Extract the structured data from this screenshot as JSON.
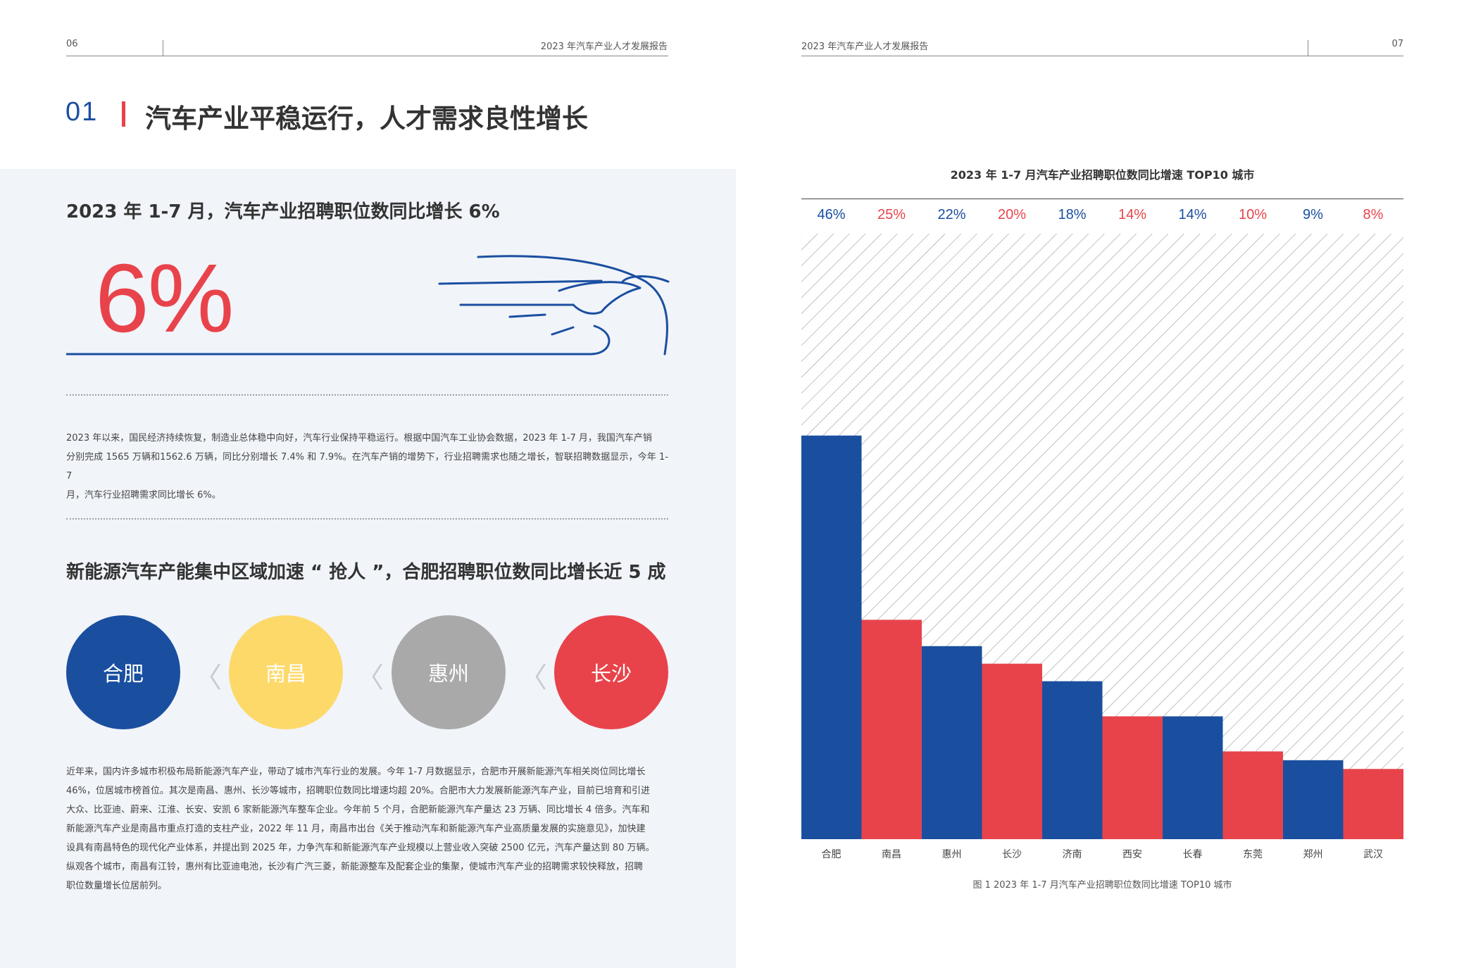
{
  "left_page": {
    "page_number": "06",
    "header_title": "2023 年汽车产业人才发展报告",
    "section_number": "01",
    "section_title": "汽车产业平稳运行，人才需求良性增长",
    "subtitle1": "2023 年 1-7 月，汽车产业招聘职位数同比增长 6%",
    "big_number": "6%",
    "paragraph1_lines": [
      "2023 年以来，国民经济持续恢复，制造业总体稳中向好，汽车行业保持平稳运行。根据中国汽车工业协会数据，2023 年 1-7 月，我国汽车产销",
      "分别完成 1565 万辆和1562.6 万辆，同比分别增长 7.4% 和 7.9%。在汽车产销的增势下，行业招聘需求也随之增长，智联招聘数据显示，今年 1-7",
      "月，汽车行业招聘需求同比增长 6%。"
    ],
    "subtitle2": "新能源汽车产能集中区域加速 “ 抢人 ”，合肥招聘职位数同比增长近 5 成",
    "cities": [
      {
        "name": "合肥",
        "color": "#1a4fa0"
      },
      {
        "name": "南昌",
        "color": "#fdd96a"
      },
      {
        "name": "惠州",
        "color": "#a9a9a9"
      },
      {
        "name": "长沙",
        "color": "#e8434b"
      }
    ],
    "chevron_icon": "chevron-left-icon",
    "paragraph2_lines": [
      "近年来，国内许多城市积极布局新能源汽车产业，带动了城市汽车行业的发展。今年 1-7 月数据显示，合肥市开展新能源汽车相关岗位同比增长",
      "46%，位居城市榜首位。其次是南昌、惠州、长沙等城市，招聘职位数同比增速均超 20%。合肥市大力发展新能源汽车产业，目前已培育和引进",
      "大众、比亚迪、蔚来、江淮、长安、安凯 6 家新能源汽车整车企业。今年前 5 个月，合肥新能源汽车产量达 23 万辆、同比增长 4 倍多。汽车和",
      "新能源汽车产业是南昌市重点打造的支柱产业，2022 年 11 月，南昌市出台《关于推动汽车和新能源汽车产业高质量发展的实施意见》，加快建",
      "设具有南昌特色的现代化产业体系，并提出到 2025 年，力争汽车和新能源汽车产业规模以上营业收入突破 2500 亿元，汽车产量达到 80 万辆。",
      "纵观各个城市，南昌有江铃，惠州有比亚迪电池，长沙有广汽三菱，新能源整车及配套企业的集聚，使城市汽车产业的招聘需求较快释放，招聘",
      "职位数量增长位居前列。"
    ]
  },
  "right_page": {
    "page_number": "07",
    "header_title": "2023 年汽车产业人才发展报告",
    "caption": "图 1   2023 年 1-7 月汽车产业招聘职位数同比增速 TOP10 城市"
  },
  "colors": {
    "blue": "#1a4fa0",
    "red": "#e8434b",
    "yellow": "#fdd96a",
    "gray": "#a9a9a9"
  },
  "chart_data": {
    "type": "bar",
    "title": "2023 年 1-7 月汽车产业招聘职位数同比增速 TOP10 城市",
    "categories": [
      "合肥",
      "南昌",
      "惠州",
      "长沙",
      "济南",
      "西安",
      "长春",
      "东莞",
      "郑州",
      "武汉"
    ],
    "values": [
      46,
      25,
      22,
      20,
      18,
      14,
      14,
      10,
      9,
      8
    ],
    "value_labels": [
      "46%",
      "25%",
      "22%",
      "20%",
      "18%",
      "14%",
      "14%",
      "10%",
      "9%",
      "8%"
    ],
    "bar_colors": [
      "#1a4fa0",
      "#e8434b",
      "#1a4fa0",
      "#e8434b",
      "#1a4fa0",
      "#e8434b",
      "#1a4fa0",
      "#e8434b",
      "#1a4fa0",
      "#e8434b"
    ],
    "unit": "%",
    "ylim": [
      0,
      69
    ],
    "background": "diagonal-hatch",
    "legend": "none"
  }
}
